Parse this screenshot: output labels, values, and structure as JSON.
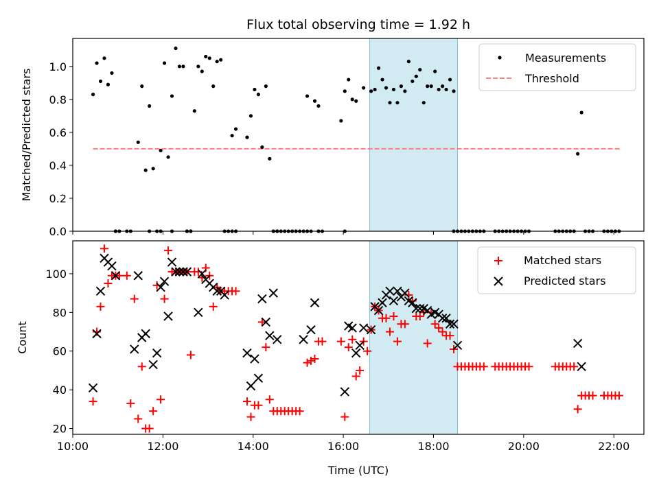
{
  "title": "Flux total observing time = 1.92 h",
  "colors": {
    "measurement": "#000000",
    "threshold": "#ff7f7f",
    "matched": "#ff0000",
    "predicted": "#000000",
    "window_fill": "#add8e6"
  },
  "chart_data": [
    {
      "type": "scatter",
      "panel": "top",
      "ylabel": "Matched/Predicted stars",
      "xlabel": "",
      "xlim": [
        "10:00",
        "22:40"
      ],
      "ylim": [
        0,
        1.17
      ],
      "yticks": [
        "0.0",
        "0.2",
        "0.4",
        "0.6",
        "0.8",
        "1.0"
      ],
      "ytick_values": [
        0,
        0.2,
        0.4,
        0.6,
        0.8,
        1.0
      ],
      "legend_position": "top-right",
      "shaded_window": {
        "start": "16:35",
        "end": "18:32"
      },
      "series": [
        {
          "name": "Measurements",
          "marker": "dot",
          "x": [
            "10:27",
            "10:32",
            "10:37",
            "10:42",
            "10:47",
            "10:52",
            "10:57",
            "11:02",
            "11:27",
            "11:32",
            "11:37",
            "11:42",
            "11:47",
            "11:52",
            "11:57",
            "12:02",
            "12:07",
            "12:12",
            "12:17",
            "12:22",
            "12:27",
            "12:32",
            "12:37",
            "12:42",
            "12:47",
            "12:52",
            "12:57",
            "13:02",
            "13:07",
            "13:12",
            "13:17",
            "13:22",
            "13:27",
            "13:32",
            "13:37",
            "13:52",
            "13:57",
            "14:02",
            "14:07",
            "14:12",
            "14:17",
            "14:22",
            "14:27",
            "14:32",
            "15:12",
            "15:22",
            "15:27",
            "15:57",
            "16:02",
            "16:07",
            "16:12",
            "16:17",
            "16:27",
            "16:37",
            "16:42",
            "16:47",
            "16:52",
            "16:57",
            "17:02",
            "17:07",
            "17:12",
            "17:17",
            "17:22",
            "17:27",
            "17:32",
            "17:37",
            "17:42",
            "17:47",
            "17:52",
            "17:57",
            "18:02",
            "18:07",
            "18:12",
            "18:17",
            "18:22",
            "18:27",
            "21:12",
            "21:17"
          ],
          "y": [
            0.83,
            1.02,
            0.91,
            1.05,
            0.89,
            0.96,
            0,
            0,
            0.54,
            0.88,
            0.37,
            0.76,
            0.38,
            0,
            0.49,
            1.02,
            0.45,
            0.82,
            1.11,
            1.0,
            1.0,
            0,
            0,
            0.73,
            1.0,
            0.97,
            1.06,
            1.05,
            0.88,
            1.03,
            1.04,
            0,
            0,
            0.58,
            0.62,
            0.57,
            0.7,
            0.86,
            0.83,
            0.51,
            0.88,
            0.44,
            0,
            0,
            0.82,
            0.79,
            0.76,
            0.67,
            0.85,
            0.92,
            0.8,
            0.79,
            0.87,
            0.85,
            0.86,
            0.99,
            0.92,
            0.87,
            0.78,
            0.86,
            0.78,
            0.88,
            0.85,
            1.03,
            0.91,
            0.94,
            0.98,
            0.78,
            0.88,
            0.88,
            0.97,
            0.86,
            0.88,
            0.86,
            0.92,
            0.85,
            0.47,
            0.72
          ]
        },
        {
          "name": "Threshold",
          "line": "dashed",
          "x": [
            "10:27",
            "22:08"
          ],
          "y": [
            0.5,
            0.5
          ]
        },
        {
          "name": "",
          "marker": "dot",
          "note_zero_points": true,
          "x": [
            "10:57",
            "11:12",
            "11:17",
            "11:42",
            "11:57",
            "12:12",
            "12:32",
            "12:37",
            "13:32",
            "13:37",
            "14:27",
            "14:32",
            "14:37",
            "14:42",
            "14:47",
            "14:52",
            "14:57",
            "15:02",
            "15:07",
            "15:12",
            "15:17",
            "15:27",
            "15:32",
            "16:02",
            "18:27",
            "18:32",
            "18:37",
            "18:42",
            "18:47",
            "18:52",
            "18:57",
            "19:02",
            "19:07",
            "19:22",
            "19:27",
            "19:32",
            "19:37",
            "19:42",
            "19:47",
            "19:52",
            "19:57",
            "20:02",
            "20:07",
            "20:42",
            "20:47",
            "20:52",
            "20:57",
            "21:02",
            "21:07",
            "21:22",
            "21:27",
            "21:32",
            "21:47",
            "21:52",
            "21:57",
            "22:02",
            "22:07"
          ],
          "y": [
            0,
            0,
            0,
            0,
            0,
            0,
            0,
            0,
            0,
            0,
            0,
            0,
            0,
            0,
            0,
            0,
            0,
            0,
            0,
            0,
            0,
            0,
            0,
            0,
            0,
            0,
            0,
            0,
            0,
            0,
            0,
            0,
            0,
            0,
            0,
            0,
            0,
            0,
            0,
            0,
            0,
            0,
            0,
            0,
            0,
            0,
            0,
            0,
            0,
            0,
            0,
            0,
            0,
            0,
            0,
            0,
            0
          ]
        }
      ]
    },
    {
      "type": "scatter",
      "panel": "bottom",
      "ylabel": "Count",
      "xlabel": "Time (UTC)",
      "xlim": [
        "10:00",
        "22:40"
      ],
      "ylim": [
        17,
        117
      ],
      "yticks": [
        "20",
        "40",
        "60",
        "80",
        "100"
      ],
      "ytick_values": [
        20,
        40,
        60,
        80,
        100
      ],
      "xticks": [
        "10:00",
        "12:00",
        "14:00",
        "16:00",
        "18:00",
        "20:00",
        "22:00"
      ],
      "legend_position": "top-right",
      "shaded_window": {
        "start": "16:35",
        "end": "18:32"
      },
      "series": [
        {
          "name": "Matched stars",
          "marker": "plus",
          "x": [
            "10:27",
            "10:32",
            "10:37",
            "10:42",
            "10:47",
            "10:52",
            "10:57",
            "11:02",
            "11:12",
            "11:17",
            "11:22",
            "11:27",
            "11:32",
            "11:37",
            "11:42",
            "11:47",
            "11:52",
            "11:57",
            "12:02",
            "12:07",
            "12:12",
            "12:17",
            "12:22",
            "12:27",
            "12:32",
            "12:37",
            "12:42",
            "12:47",
            "12:52",
            "12:57",
            "13:02",
            "13:07",
            "13:12",
            "13:17",
            "13:22",
            "13:27",
            "13:32",
            "13:37",
            "13:52",
            "13:57",
            "14:02",
            "14:07",
            "14:12",
            "14:17",
            "14:22",
            "14:27",
            "14:32",
            "14:37",
            "14:42",
            "14:47",
            "14:52",
            "14:57",
            "15:02",
            "15:12",
            "15:17",
            "15:22",
            "15:27",
            "15:32",
            "15:57",
            "16:02",
            "16:07",
            "16:12",
            "16:17",
            "16:22",
            "16:27",
            "16:32",
            "16:37",
            "16:42",
            "16:47",
            "16:52",
            "16:57",
            "17:02",
            "17:07",
            "17:12",
            "17:17",
            "17:22",
            "17:27",
            "17:32",
            "17:37",
            "17:42",
            "17:47",
            "17:52",
            "17:57",
            "18:02",
            "18:07",
            "18:12",
            "18:17",
            "18:22",
            "18:27",
            "18:32",
            "18:37",
            "18:42",
            "18:47",
            "18:52",
            "18:57",
            "19:02",
            "19:07",
            "19:22",
            "19:27",
            "19:32",
            "19:37",
            "19:42",
            "19:47",
            "19:52",
            "19:57",
            "20:02",
            "20:07",
            "20:42",
            "20:47",
            "20:52",
            "20:57",
            "21:02",
            "21:07",
            "21:12",
            "21:17",
            "21:22",
            "21:27",
            "21:32",
            "21:47",
            "21:52",
            "21:57",
            "22:02",
            "22:07"
          ],
          "y": [
            34,
            70,
            83,
            113,
            95,
            99,
            99,
            99,
            99,
            33,
            87,
            25,
            52,
            20,
            20,
            29,
            94,
            35,
            87,
            112,
            101,
            101,
            101,
            101,
            101,
            58,
            101,
            101,
            98,
            103,
            99,
            83,
            93,
            91,
            91,
            91,
            91,
            91,
            34,
            26,
            32,
            32,
            75,
            62,
            35,
            29,
            29,
            29,
            29,
            29,
            29,
            29,
            29,
            54,
            55,
            56,
            65,
            65,
            65,
            26,
            62,
            66,
            47,
            50,
            65,
            60,
            71,
            83,
            81,
            77,
            77,
            70,
            78,
            65,
            74,
            74,
            89,
            86,
            78,
            78,
            80,
            64,
            80,
            74,
            72,
            70,
            68,
            68,
            61,
            52,
            52,
            52,
            52,
            52,
            52,
            52,
            52,
            52,
            52,
            52,
            52,
            52,
            52,
            52,
            52,
            52,
            52,
            52,
            52,
            52,
            52,
            52,
            52,
            30,
            37,
            37,
            37,
            37,
            37,
            37,
            37,
            37,
            37
          ]
        },
        {
          "name": "Predicted stars",
          "marker": "x",
          "x": [
            "10:27",
            "10:32",
            "10:37",
            "10:42",
            "10:47",
            "10:52",
            "10:57",
            "11:22",
            "11:27",
            "11:32",
            "11:37",
            "11:47",
            "11:52",
            "11:57",
            "12:02",
            "12:07",
            "12:12",
            "12:17",
            "12:22",
            "12:27",
            "12:32",
            "12:47",
            "12:52",
            "12:57",
            "13:02",
            "13:07",
            "13:12",
            "13:17",
            "13:22",
            "13:52",
            "13:57",
            "14:02",
            "14:07",
            "14:12",
            "14:17",
            "14:22",
            "14:27",
            "14:32",
            "15:07",
            "15:17",
            "15:22",
            "16:02",
            "16:07",
            "16:12",
            "16:17",
            "16:22",
            "16:27",
            "16:37",
            "16:42",
            "16:47",
            "16:52",
            "16:57",
            "17:02",
            "17:07",
            "17:12",
            "17:17",
            "17:22",
            "17:27",
            "17:32",
            "17:37",
            "17:42",
            "17:47",
            "17:52",
            "17:57",
            "18:02",
            "18:07",
            "18:12",
            "18:17",
            "18:22",
            "18:27",
            "18:32",
            "21:12",
            "21:17"
          ],
          "y": [
            41,
            69,
            91,
            108,
            106,
            104,
            99,
            61,
            99,
            67,
            69,
            53,
            59,
            93,
            96,
            78,
            106,
            101,
            101,
            101,
            101,
            80,
            100,
            97,
            95,
            93,
            91,
            91,
            89,
            59,
            42,
            56,
            46,
            87,
            75,
            68,
            90,
            66,
            66,
            71,
            85,
            39,
            73,
            72,
            59,
            63,
            72,
            71,
            83,
            81,
            85,
            89,
            91,
            86,
            91,
            88,
            90,
            86,
            85,
            82,
            82,
            82,
            81,
            79,
            80,
            79,
            77,
            77,
            74,
            74,
            63,
            64,
            52
          ]
        }
      ]
    }
  ]
}
